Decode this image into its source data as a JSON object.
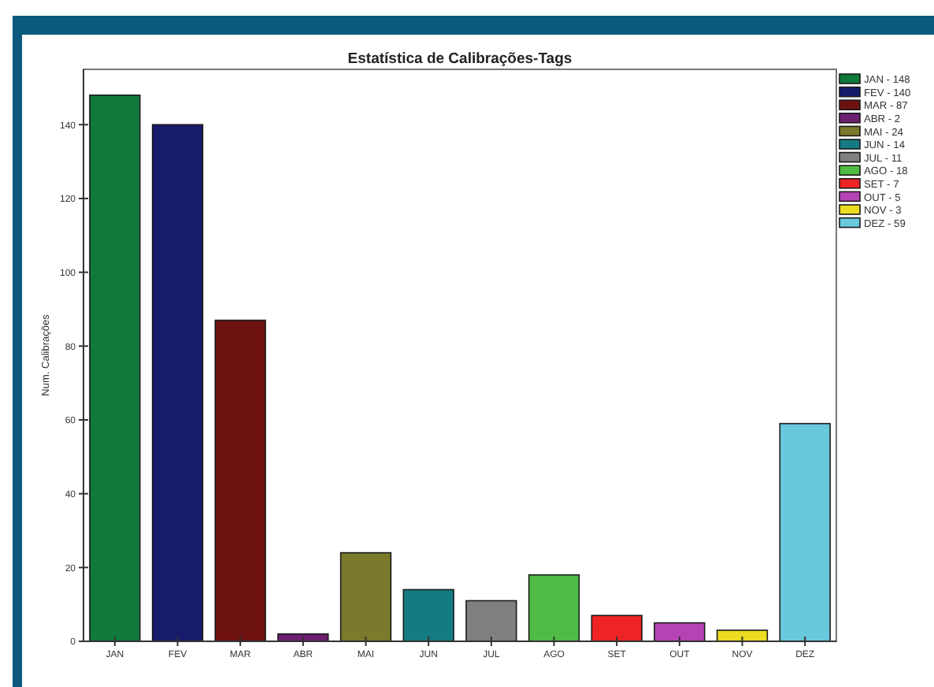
{
  "chart_data": {
    "type": "bar",
    "title": "Estatística de Calibrações-Tags",
    "ylabel": "Num. Calibrações",
    "categories": [
      "JAN",
      "FEV",
      "MAR",
      "ABR",
      "MAI",
      "JUN",
      "JUL",
      "AGO",
      "SET",
      "OUT",
      "NOV",
      "DEZ"
    ],
    "stacked": true,
    "series": [
      {
        "name": "JAN - 148",
        "color": "#0f7a3a",
        "values": [
          148,
          null,
          null,
          null,
          null,
          null,
          null,
          null,
          null,
          null,
          null,
          null
        ]
      },
      {
        "name": "FEV - 140",
        "color": "#161b6b",
        "values": [
          null,
          140,
          null,
          null,
          null,
          null,
          null,
          null,
          null,
          null,
          null,
          null
        ]
      },
      {
        "name": "MAR - 87",
        "color": "#6e1111",
        "values": [
          null,
          null,
          87,
          null,
          null,
          null,
          null,
          null,
          null,
          null,
          null,
          null
        ]
      },
      {
        "name": "ABR - 2",
        "color": "#6d2070",
        "values": [
          null,
          null,
          null,
          2,
          null,
          null,
          null,
          null,
          null,
          null,
          null,
          null
        ]
      },
      {
        "name": "MAI - 24",
        "color": "#7b7a2c",
        "values": [
          null,
          null,
          null,
          null,
          24,
          null,
          null,
          null,
          null,
          null,
          null,
          null
        ]
      },
      {
        "name": "JUN - 14",
        "color": "#147b82",
        "values": [
          null,
          null,
          null,
          null,
          null,
          14,
          null,
          null,
          null,
          null,
          null,
          null
        ]
      },
      {
        "name": "JUL - 11",
        "color": "#808080",
        "values": [
          null,
          null,
          null,
          null,
          null,
          null,
          11,
          null,
          null,
          null,
          null,
          null
        ]
      },
      {
        "name": "AGO - 18",
        "color": "#4fbb45",
        "values": [
          null,
          null,
          null,
          null,
          null,
          null,
          null,
          18,
          null,
          null,
          null,
          null
        ]
      },
      {
        "name": "SET - 7",
        "color": "#ee2424",
        "values": [
          null,
          null,
          null,
          null,
          null,
          null,
          null,
          null,
          7,
          null,
          null,
          null
        ]
      },
      {
        "name": "OUT - 5",
        "color": "#b443b4",
        "values": [
          null,
          null,
          null,
          null,
          null,
          null,
          null,
          null,
          null,
          5,
          null,
          null
        ]
      },
      {
        "name": "NOV - 3",
        "color": "#ecdc22",
        "values": [
          null,
          null,
          null,
          null,
          null,
          null,
          null,
          null,
          null,
          null,
          3,
          null
        ]
      },
      {
        "name": "DEZ - 59",
        "color": "#68c9dd",
        "values": [
          null,
          null,
          null,
          null,
          null,
          null,
          null,
          null,
          null,
          null,
          null,
          59
        ]
      }
    ],
    "ylim": [
      0,
      155
    ],
    "yticks": [
      0,
      20,
      40,
      60,
      80,
      100,
      120,
      140
    ],
    "legend": "top right"
  }
}
